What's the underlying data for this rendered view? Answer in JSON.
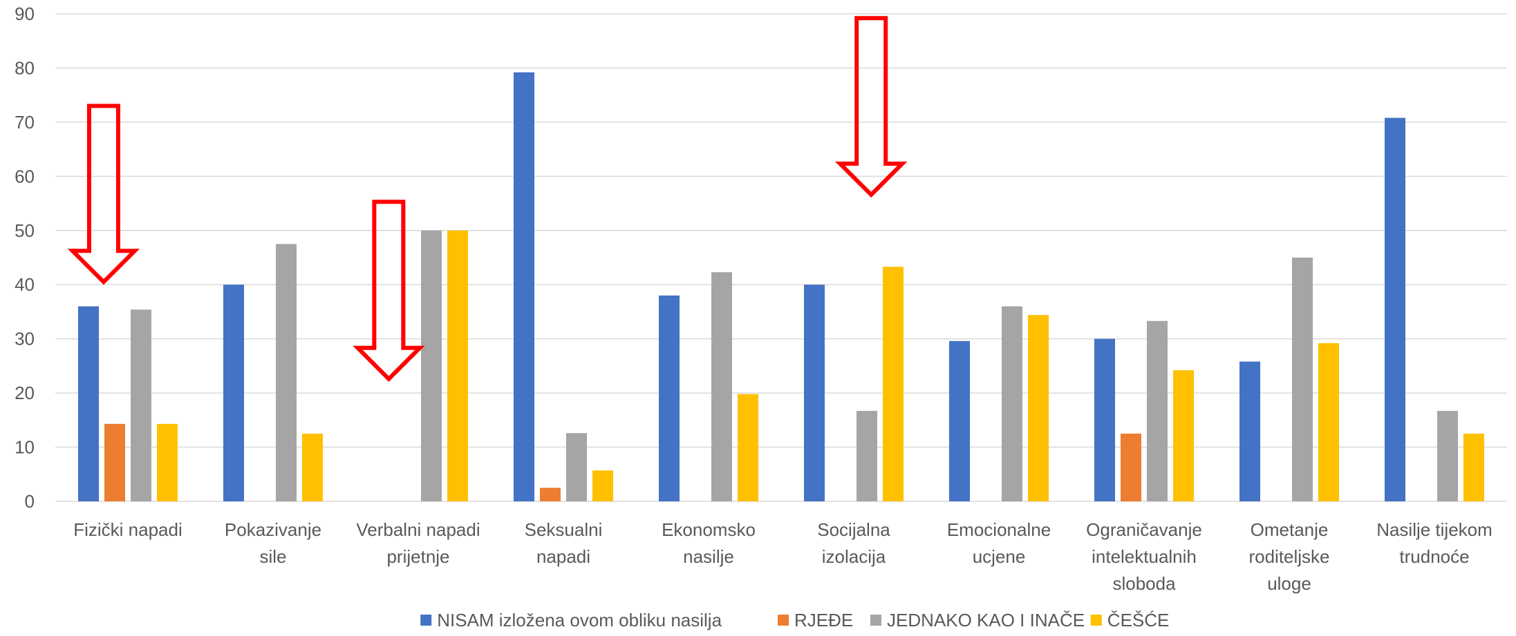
{
  "chart_data": {
    "type": "bar",
    "title": "",
    "xlabel": "",
    "ylabel": "",
    "ylim": [
      0,
      90
    ],
    "yticks": [
      0,
      10,
      20,
      30,
      40,
      50,
      60,
      70,
      80,
      90
    ],
    "grid": true,
    "legend_position": "bottom",
    "categories": [
      [
        "Fizički napadi"
      ],
      [
        "Pokazivanje",
        "sile"
      ],
      [
        "Verbalni napadi",
        "prijetnje"
      ],
      [
        "Seksualni",
        "napadi"
      ],
      [
        "Ekonomsko",
        "nasilje"
      ],
      [
        "Socijalna",
        "izolacija"
      ],
      [
        "Emocionalne",
        "ucjene"
      ],
      [
        "Ograničavanje",
        "intelektualnih",
        "sloboda"
      ],
      [
        "Ometanje",
        "roditeljske",
        "uloge"
      ],
      [
        "Nasilje tijekom",
        "trudnoće"
      ]
    ],
    "series": [
      {
        "name": "NISAM izložena ovom obliku nasilja",
        "color": "#4472c4",
        "values": [
          36,
          40,
          null,
          79.2,
          38,
          40,
          29.6,
          30,
          25.8,
          70.8
        ]
      },
      {
        "name": "RJEĐE",
        "color": "#ed7d31",
        "values": [
          14.3,
          null,
          null,
          2.5,
          null,
          null,
          null,
          12.5,
          null,
          null
        ]
      },
      {
        "name": "JEDNAKO KAO I INAČE",
        "color": "#a5a5a5",
        "values": [
          35.4,
          47.5,
          50,
          12.6,
          42.3,
          16.7,
          36,
          33.3,
          45,
          16.7
        ]
      },
      {
        "name": "ČEŠĆE",
        "color": "#ffc000",
        "values": [
          14.3,
          12.5,
          50,
          5.7,
          19.8,
          43.3,
          34.4,
          24.2,
          29.2,
          12.5
        ]
      }
    ],
    "annotations": [
      {
        "type": "down-arrow",
        "color": "#ff0000",
        "category_index": 0,
        "x_category_offset": 0.333,
        "y_top": 73,
        "y_tip": 40.5
      },
      {
        "type": "down-arrow",
        "color": "#ff0000",
        "category_index": 2,
        "x_category_offset": 0.297,
        "y_top": 55.3,
        "y_tip": 22.6
      },
      {
        "type": "down-arrow",
        "color": "#ff0000",
        "category_index": 5,
        "x_category_offset": 0.62,
        "y_top": 89.2,
        "y_tip": 56.6
      }
    ]
  }
}
